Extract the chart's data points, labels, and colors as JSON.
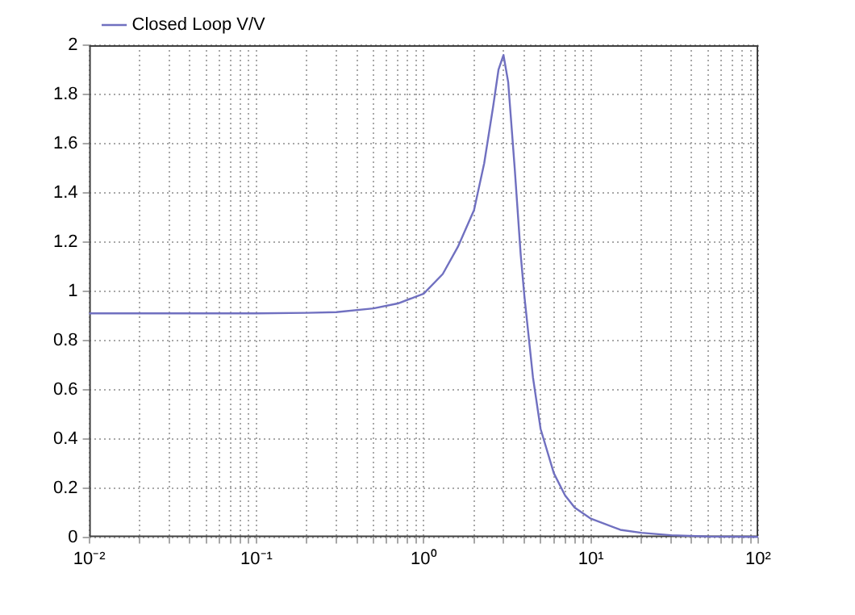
{
  "chart_data": {
    "type": "line",
    "log": "x",
    "xlim": [
      0.01,
      100
    ],
    "xticks": [
      {
        "value": 0.01,
        "label": "10⁻²"
      },
      {
        "value": 0.02,
        "label": null
      },
      {
        "value": 0.03,
        "label": null
      },
      {
        "value": 0.04,
        "label": null
      },
      {
        "value": 0.05,
        "label": null
      },
      {
        "value": 0.06,
        "label": null
      },
      {
        "value": 0.07,
        "label": null
      },
      {
        "value": 0.08,
        "label": null
      },
      {
        "value": 0.09,
        "label": null
      },
      {
        "value": 0.1,
        "label": "10⁻¹"
      },
      {
        "value": 0.2,
        "label": null
      },
      {
        "value": 0.3,
        "label": null
      },
      {
        "value": 0.4,
        "label": null
      },
      {
        "value": 0.5,
        "label": null
      },
      {
        "value": 0.6,
        "label": null
      },
      {
        "value": 0.7,
        "label": null
      },
      {
        "value": 0.8,
        "label": null
      },
      {
        "value": 0.9,
        "label": null
      },
      {
        "value": 1,
        "label": "10⁰"
      },
      {
        "value": 2,
        "label": null
      },
      {
        "value": 3,
        "label": null
      },
      {
        "value": 4,
        "label": null
      },
      {
        "value": 5,
        "label": null
      },
      {
        "value": 6,
        "label": null
      },
      {
        "value": 7,
        "label": null
      },
      {
        "value": 8,
        "label": null
      },
      {
        "value": 9,
        "label": null
      },
      {
        "value": 10,
        "label": "10¹"
      },
      {
        "value": 20,
        "label": null
      },
      {
        "value": 30,
        "label": null
      },
      {
        "value": 40,
        "label": null
      },
      {
        "value": 50,
        "label": null
      },
      {
        "value": 60,
        "label": null
      },
      {
        "value": 70,
        "label": null
      },
      {
        "value": 80,
        "label": null
      },
      {
        "value": 90,
        "label": null
      },
      {
        "value": 100,
        "label": "10²"
      }
    ],
    "ylim": [
      0,
      2
    ],
    "yticks": [
      0,
      0.2,
      0.4,
      0.6,
      0.8,
      1,
      1.2,
      1.4,
      1.6,
      1.8,
      2
    ],
    "grid": true,
    "legend": "top left",
    "line_style": "solid",
    "marker": "none",
    "series": [
      {
        "name": "Closed Loop V/V",
        "color": "#7070c0",
        "x": [
          0.01,
          0.05,
          0.1,
          0.2,
          0.3,
          0.5,
          0.7,
          1,
          1.3,
          1.6,
          2,
          2.3,
          2.6,
          2.8,
          3,
          3.2,
          3.5,
          3.8,
          4,
          4.5,
          5,
          6,
          7,
          8,
          10,
          15,
          20,
          30,
          50,
          100
        ],
        "values": [
          0.91,
          0.91,
          0.91,
          0.912,
          0.915,
          0.93,
          0.95,
          0.99,
          1.07,
          1.18,
          1.33,
          1.52,
          1.75,
          1.9,
          1.96,
          1.85,
          1.5,
          1.15,
          0.98,
          0.65,
          0.44,
          0.26,
          0.17,
          0.12,
          0.075,
          0.03,
          0.018,
          0.008,
          0.003,
          0.001
        ]
      }
    ]
  }
}
